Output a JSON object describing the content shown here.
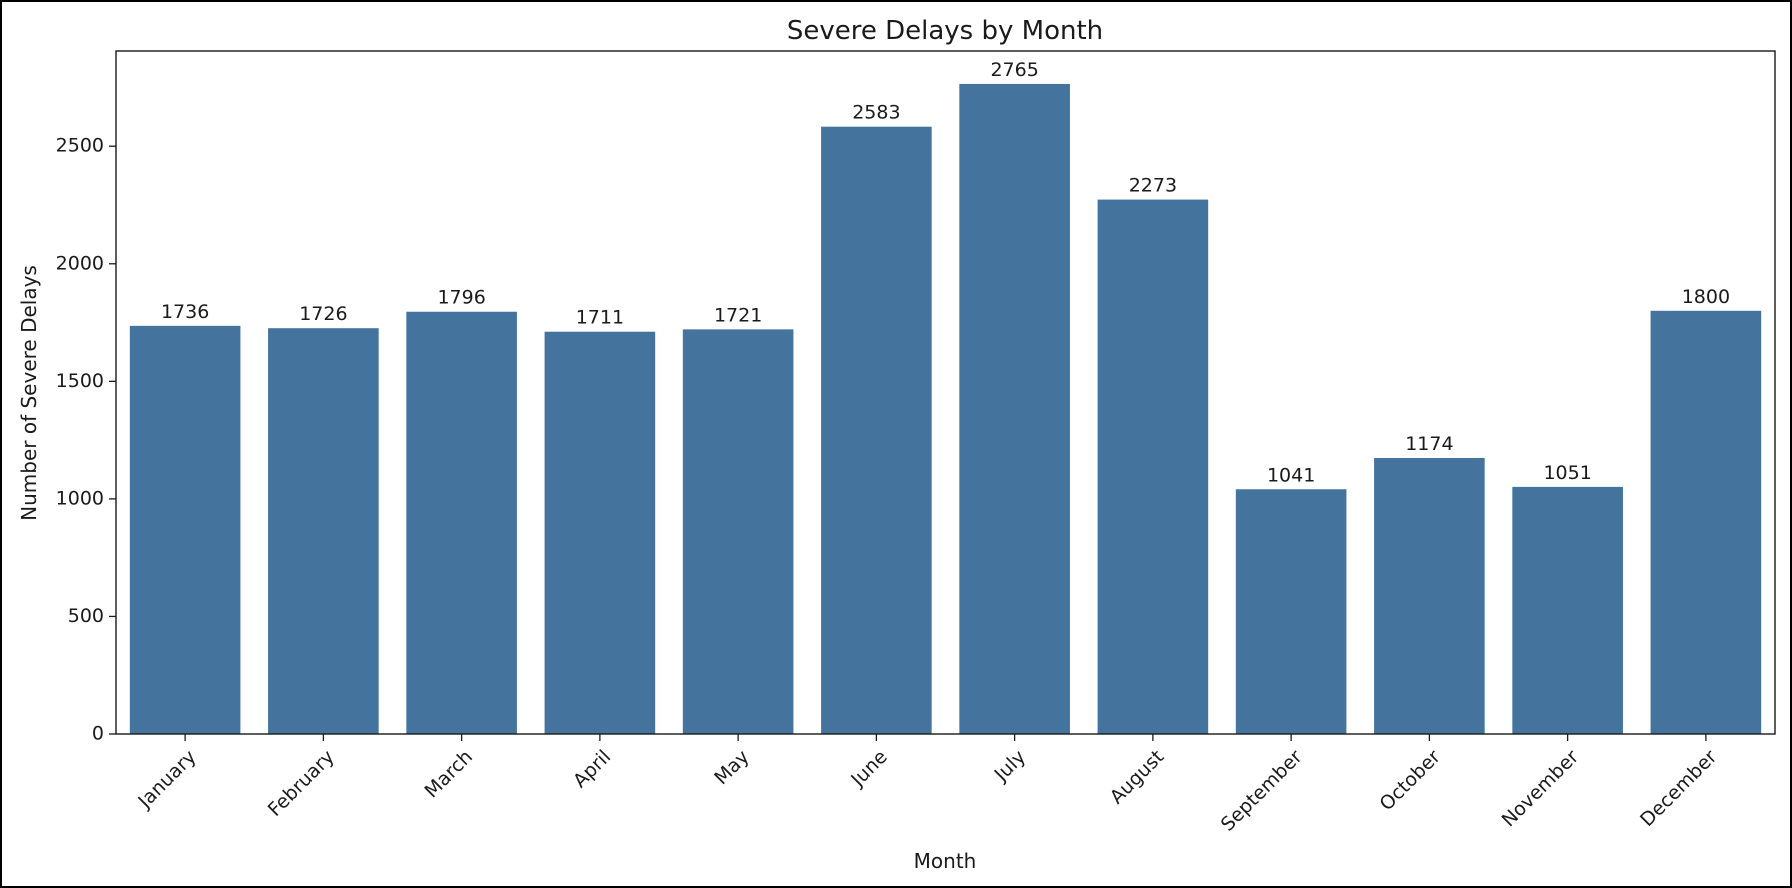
{
  "chart_data": {
    "type": "bar",
    "title": "Severe Delays by Month",
    "xlabel": "Month",
    "ylabel": "Number of Severe Delays",
    "categories": [
      "January",
      "February",
      "March",
      "April",
      "May",
      "June",
      "July",
      "August",
      "September",
      "October",
      "November",
      "December"
    ],
    "values": [
      1736,
      1726,
      1796,
      1711,
      1721,
      2583,
      2765,
      2273,
      1041,
      1174,
      1051,
      1800
    ],
    "ylim": [
      0,
      2905
    ],
    "yticks": [
      0,
      500,
      1000,
      1500,
      2000,
      2500
    ],
    "grid": false,
    "bar_color": "#44739e",
    "show_value_labels": true,
    "xtick_rotation": -45
  }
}
